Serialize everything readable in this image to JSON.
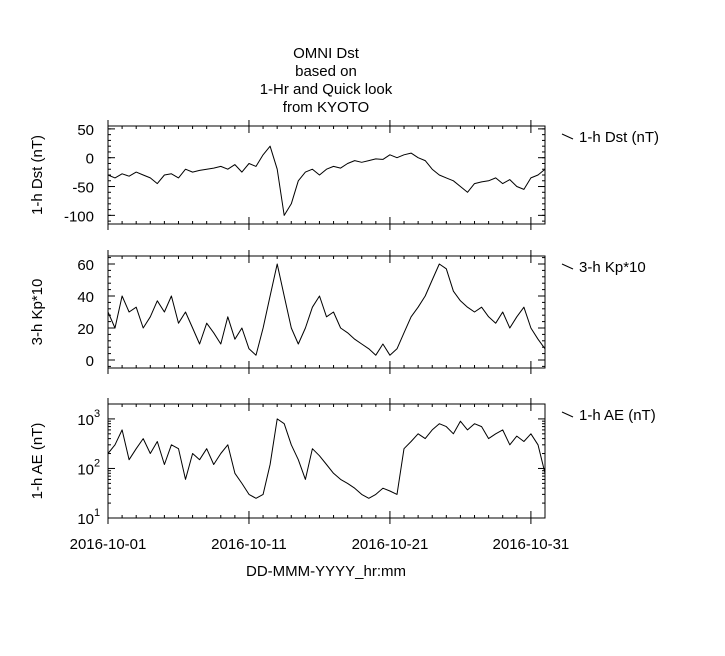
{
  "chart_data": {
    "type": "line",
    "title": [
      "OMNI Dst",
      "based on",
      "1-Hr and Quick look",
      "from KYOTO"
    ],
    "xlabel": "DD-MMM-YYYY_hr:mm",
    "x_tick_labels": [
      "2016-10-01",
      "2016-10-11",
      "2016-10-21",
      "2016-10-31"
    ],
    "x_tick_values": [
      0,
      10,
      20,
      30
    ],
    "xlim": [
      0,
      31
    ],
    "panels": [
      {
        "ylabel": "1-h Dst (nT)",
        "legend": "1-h Dst (nT)",
        "scale": "linear",
        "ylim": [
          -115,
          55
        ],
        "y_tick_labels": [
          "50",
          "0",
          "-50",
          "-100"
        ],
        "y_tick_values": [
          50,
          0,
          -50,
          -100
        ],
        "series": {
          "x": [
            0,
            0.5,
            1,
            1.5,
            2,
            2.5,
            3,
            3.5,
            4,
            4.5,
            5,
            5.5,
            6,
            6.5,
            7,
            7.5,
            8,
            8.5,
            9,
            9.5,
            10,
            10.5,
            11,
            11.5,
            12,
            12.5,
            13,
            13.5,
            14,
            14.5,
            15,
            15.5,
            16,
            16.5,
            17,
            17.5,
            18,
            18.5,
            19,
            19.5,
            20,
            20.5,
            21,
            21.5,
            22,
            22.5,
            23,
            23.5,
            24,
            24.5,
            25,
            25.5,
            26,
            26.5,
            27,
            27.5,
            28,
            28.5,
            29,
            29.5,
            30,
            30.5,
            31
          ],
          "y": [
            -30,
            -35,
            -28,
            -32,
            -25,
            -30,
            -35,
            -45,
            -30,
            -28,
            -35,
            -20,
            -25,
            -22,
            -20,
            -18,
            -15,
            -20,
            -12,
            -25,
            -10,
            -15,
            5,
            20,
            -20,
            -100,
            -80,
            -40,
            -25,
            -20,
            -30,
            -20,
            -15,
            -18,
            -10,
            -5,
            -8,
            -5,
            -2,
            -3,
            5,
            0,
            5,
            8,
            0,
            -5,
            -20,
            -30,
            -35,
            -40,
            -50,
            -60,
            -45,
            -42,
            -40,
            -35,
            -45,
            -38,
            -50,
            -55,
            -35,
            -30,
            -20
          ]
        }
      },
      {
        "ylabel": "3-h Kp*10",
        "legend": "3-h Kp*10",
        "scale": "linear",
        "ylim": [
          -5,
          65
        ],
        "y_tick_labels": [
          "60",
          "40",
          "20",
          "0"
        ],
        "y_tick_values": [
          60,
          40,
          20,
          0
        ],
        "series": {
          "x": [
            0,
            0.5,
            1,
            1.5,
            2,
            2.5,
            3,
            3.5,
            4,
            4.5,
            5,
            5.5,
            6,
            6.5,
            7,
            7.5,
            8,
            8.5,
            9,
            9.5,
            10,
            10.5,
            11,
            11.5,
            12,
            12.5,
            13,
            13.5,
            14,
            14.5,
            15,
            15.5,
            16,
            16.5,
            17,
            17.5,
            18,
            18.5,
            19,
            19.5,
            20,
            20.5,
            21,
            21.5,
            22,
            22.5,
            23,
            23.5,
            24,
            24.5,
            25,
            25.5,
            26,
            26.5,
            27,
            27.5,
            28,
            28.5,
            29,
            29.5,
            30,
            30.5,
            31
          ],
          "y": [
            30,
            20,
            40,
            30,
            33,
            20,
            27,
            37,
            30,
            40,
            23,
            30,
            20,
            10,
            23,
            17,
            10,
            27,
            13,
            20,
            7,
            3,
            20,
            40,
            60,
            40,
            20,
            10,
            20,
            33,
            40,
            27,
            30,
            20,
            17,
            13,
            10,
            7,
            3,
            10,
            3,
            7,
            17,
            27,
            33,
            40,
            50,
            60,
            57,
            43,
            37,
            33,
            30,
            33,
            27,
            23,
            30,
            20,
            27,
            33,
            20,
            13,
            7
          ]
        }
      },
      {
        "ylabel": "1-h AE (nT)",
        "legend": "1-h AE (nT)",
        "scale": "log",
        "ylim": [
          10,
          2000
        ],
        "y_tick_labels": [
          "10",
          "10",
          "10"
        ],
        "y_tick_exponents": [
          "3",
          "2",
          "1"
        ],
        "y_tick_values": [
          1000,
          100,
          10
        ],
        "series": {
          "x": [
            0,
            0.5,
            1,
            1.5,
            2,
            2.5,
            3,
            3.5,
            4,
            4.5,
            5,
            5.5,
            6,
            6.5,
            7,
            7.5,
            8,
            8.5,
            9,
            9.5,
            10,
            10.5,
            11,
            11.5,
            12,
            12.5,
            13,
            13.5,
            14,
            14.5,
            15,
            15.5,
            16,
            16.5,
            17,
            17.5,
            18,
            18.5,
            19,
            19.5,
            20,
            20.5,
            21,
            21.5,
            22,
            22.5,
            23,
            23.5,
            24,
            24.5,
            25,
            25.5,
            26,
            26.5,
            27,
            27.5,
            28,
            28.5,
            29,
            29.5,
            30,
            30.5,
            31
          ],
          "y": [
            200,
            300,
            600,
            150,
            250,
            400,
            200,
            350,
            120,
            300,
            250,
            60,
            200,
            150,
            250,
            120,
            200,
            300,
            80,
            50,
            30,
            25,
            30,
            120,
            1000,
            800,
            300,
            150,
            60,
            250,
            180,
            120,
            80,
            60,
            50,
            40,
            30,
            25,
            30,
            40,
            35,
            30,
            250,
            350,
            500,
            400,
            600,
            800,
            700,
            500,
            900,
            600,
            800,
            700,
            400,
            500,
            600,
            300,
            450,
            350,
            500,
            300,
            80
          ]
        }
      }
    ]
  }
}
